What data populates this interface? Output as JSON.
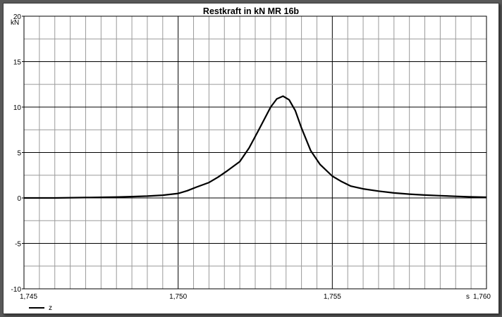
{
  "chart_data": {
    "type": "line",
    "title": "Restkraft in kN MR 16b",
    "xlabel": "s",
    "ylabel": "kN",
    "xlim": [
      1.745,
      1.76
    ],
    "ylim": [
      -10,
      20
    ],
    "x_ticks": [
      1.745,
      1.75,
      1.755,
      1.76
    ],
    "x_tick_labels": [
      "1,745",
      "1,750",
      "1,755",
      "1,760"
    ],
    "y_ticks": [
      -10,
      -5,
      0,
      5,
      10,
      15,
      20
    ],
    "y_tick_labels": [
      "-10",
      "-5",
      "0",
      "5",
      "10",
      "15",
      "20"
    ],
    "grid": true,
    "legend_position": "bottom-left",
    "series": [
      {
        "name": "z",
        "color": "#000000",
        "x": [
          1.745,
          1.746,
          1.747,
          1.748,
          1.7485,
          1.749,
          1.7495,
          1.75,
          1.7503,
          1.7506,
          1.751,
          1.7513,
          1.7516,
          1.752,
          1.7523,
          1.7526,
          1.753,
          1.7532,
          1.7534,
          1.7536,
          1.7538,
          1.754,
          1.7543,
          1.7546,
          1.755,
          1.7553,
          1.7556,
          1.756,
          1.7565,
          1.757,
          1.7575,
          1.758,
          1.7585,
          1.759,
          1.7595,
          1.76
        ],
        "y": [
          0,
          0,
          0.05,
          0.1,
          0.15,
          0.2,
          0.3,
          0.5,
          0.8,
          1.2,
          1.7,
          2.3,
          3.0,
          4.0,
          5.5,
          7.4,
          10.0,
          10.9,
          11.2,
          10.8,
          9.6,
          7.7,
          5.2,
          3.7,
          2.4,
          1.8,
          1.3,
          1.0,
          0.75,
          0.55,
          0.42,
          0.32,
          0.25,
          0.18,
          0.12,
          0.08
        ]
      }
    ]
  }
}
